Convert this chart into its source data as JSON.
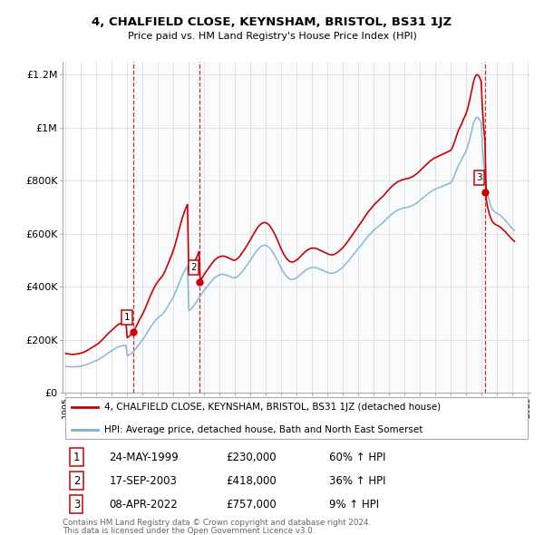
{
  "title": "4, CHALFIELD CLOSE, KEYNSHAM, BRISTOL, BS31 1JZ",
  "subtitle": "Price paid vs. HM Land Registry's House Price Index (HPI)",
  "legend_label_red": "4, CHALFIELD CLOSE, KEYNSHAM, BRISTOL, BS31 1JZ (detached house)",
  "legend_label_blue": "HPI: Average price, detached house, Bath and North East Somerset",
  "footer1": "Contains HM Land Registry data © Crown copyright and database right 2024.",
  "footer2": "This data is licensed under the Open Government Licence v3.0.",
  "transactions": [
    {
      "num": 1,
      "date": "24-MAY-1999",
      "price": 230000,
      "price_str": "£230,000",
      "pct": "60% ↑ HPI",
      "year": 1999.38
    },
    {
      "num": 2,
      "date": "17-SEP-2003",
      "price": 418000,
      "price_str": "£418,000",
      "pct": "36% ↑ HPI",
      "year": 2003.71
    },
    {
      "num": 3,
      "date": "08-APR-2022",
      "price": 757000,
      "price_str": "£757,000",
      "pct": "9% ↑ HPI",
      "year": 2022.27
    }
  ],
  "red_color": "#cc0000",
  "blue_color": "#7ab0d4",
  "vline_color": "#cc0000",
  "shade_color": "#daeaf7",
  "bg_color": "#ffffff",
  "grid_color": "#cccccc",
  "ylim": [
    0,
    1250000
  ],
  "yticks": [
    0,
    200000,
    400000,
    600000,
    800000,
    1000000,
    1200000
  ],
  "ytick_labels": [
    "£0",
    "£200K",
    "£400K",
    "£600K",
    "£800K",
    "£1M",
    "£1.2M"
  ],
  "hpi_monthly": [
    100000,
    99500,
    99000,
    98500,
    98000,
    97500,
    97500,
    98000,
    98500,
    99000,
    99500,
    100000,
    101000,
    102000,
    103000,
    104500,
    106000,
    108000,
    110000,
    112000,
    114000,
    116000,
    118000,
    120000,
    122000,
    124000,
    127000,
    130000,
    133000,
    136000,
    139500,
    143000,
    146500,
    150000,
    153000,
    156000,
    159000,
    162000,
    165000,
    168000,
    171000,
    173500,
    175000,
    176000,
    177000,
    178000,
    179000,
    180000,
    140000,
    142000,
    145000,
    148000,
    152000,
    157000,
    162500,
    168000,
    175000,
    182000,
    188000,
    194000,
    200000,
    207000,
    214000,
    222000,
    230000,
    238000,
    246000,
    253000,
    260000,
    267000,
    273000,
    278000,
    283000,
    287000,
    291000,
    295000,
    300000,
    306000,
    313000,
    321000,
    329000,
    337000,
    345000,
    353000,
    362000,
    372000,
    384000,
    396000,
    409000,
    421000,
    433000,
    444000,
    454000,
    463000,
    471000,
    478000,
    310000,
    313000,
    317000,
    323000,
    329000,
    336000,
    343000,
    350000,
    358000,
    366000,
    373000,
    380000,
    387000,
    393000,
    399000,
    405000,
    411000,
    417000,
    423000,
    428000,
    433000,
    437000,
    440000,
    443000,
    445000,
    446000,
    447000,
    447000,
    446000,
    445000,
    443000,
    441000,
    439000,
    437000,
    435000,
    433000,
    434000,
    436000,
    439000,
    443000,
    448000,
    454000,
    460000,
    466000,
    472000,
    479000,
    486000,
    493000,
    500000,
    507000,
    515000,
    522000,
    529000,
    536000,
    542000,
    547000,
    551000,
    554000,
    556000,
    557000,
    556000,
    554000,
    551000,
    547000,
    541000,
    534000,
    527000,
    519000,
    510000,
    501000,
    491000,
    481000,
    471000,
    462000,
    454000,
    447000,
    441000,
    436000,
    432000,
    429000,
    428000,
    428000,
    429000,
    431000,
    434000,
    437000,
    441000,
    445000,
    450000,
    454000,
    458000,
    462000,
    465000,
    468000,
    470000,
    472000,
    473000,
    473000,
    473000,
    472000,
    471000,
    469000,
    467000,
    465000,
    463000,
    461000,
    459000,
    457000,
    455000,
    453000,
    452000,
    451000,
    451000,
    452000,
    454000,
    456000,
    459000,
    462000,
    466000,
    470000,
    474000,
    479000,
    484000,
    489000,
    495000,
    501000,
    507000,
    513000,
    519000,
    525000,
    531000,
    537000,
    543000,
    549000,
    555000,
    561000,
    567000,
    574000,
    580000,
    586000,
    592000,
    597000,
    602000,
    607000,
    612000,
    617000,
    621000,
    625000,
    629000,
    633000,
    637000,
    641000,
    645000,
    650000,
    655000,
    660000,
    664000,
    669000,
    673000,
    677000,
    681000,
    684000,
    687000,
    690000,
    692000,
    694000,
    696000,
    697000,
    698000,
    699000,
    700000,
    701000,
    702000,
    704000,
    706000,
    708000,
    711000,
    714000,
    717000,
    721000,
    725000,
    729000,
    733000,
    737000,
    741000,
    745000,
    749000,
    753000,
    757000,
    760000,
    763000,
    766000,
    768000,
    770000,
    772000,
    774000,
    776000,
    778000,
    780000,
    782000,
    784000,
    786000,
    788000,
    790000,
    792000,
    797000,
    806000,
    817000,
    830000,
    844000,
    855000,
    864000,
    872000,
    882000,
    892000,
    901000,
    910000,
    922000,
    938000,
    956000,
    976000,
    997000,
    1016000,
    1030000,
    1038000,
    1040000,
    1037000,
    1029000,
    1018000,
    930000,
    867000,
    820000,
    782000,
    752000,
    730000,
    713000,
    700000,
    691000,
    685000,
    681000,
    678000,
    676000,
    673000,
    669000,
    665000,
    660000,
    655000,
    650000,
    644000,
    638000,
    633000,
    627000,
    621000,
    617000,
    612000
  ]
}
